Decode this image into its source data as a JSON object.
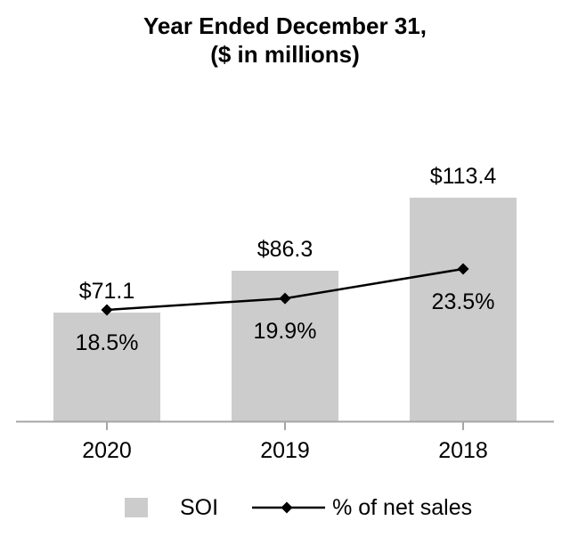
{
  "chart_data": {
    "type": "bar",
    "subtype": "bar-with-line-overlay",
    "title": "Year Ended December 31,",
    "subtitle": "($ in millions)",
    "categories": [
      "2020",
      "2019",
      "2018"
    ],
    "series": [
      {
        "name": "SOI",
        "type": "bar",
        "values": [
          71.1,
          86.3,
          113.4
        ],
        "data_labels": [
          "$71.1",
          "$86.3",
          "$113.4"
        ],
        "color": "#cccccc"
      },
      {
        "name": "% of net sales",
        "type": "line",
        "marker": "diamond",
        "values": [
          18.5,
          19.9,
          23.5
        ],
        "data_labels": [
          "18.5%",
          "19.9%",
          "23.5%"
        ],
        "color": "#000000"
      }
    ],
    "xlabel": "",
    "ylabel": "",
    "grid": false,
    "y_axis_visible": false,
    "axis_color": "#a6a6a6",
    "legend_position": "bottom"
  }
}
